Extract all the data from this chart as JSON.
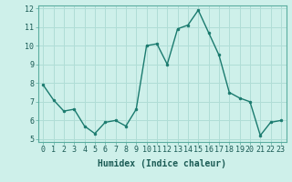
{
  "x": [
    0,
    1,
    2,
    3,
    4,
    5,
    6,
    7,
    8,
    9,
    10,
    11,
    12,
    13,
    14,
    15,
    16,
    17,
    18,
    19,
    20,
    21,
    22,
    23
  ],
  "y": [
    7.9,
    7.1,
    6.5,
    6.6,
    5.7,
    5.3,
    5.9,
    6.0,
    5.7,
    6.6,
    10.0,
    10.1,
    9.0,
    10.9,
    11.1,
    11.9,
    10.7,
    9.5,
    7.5,
    7.2,
    7.0,
    5.2,
    5.9,
    6.0
  ],
  "line_color": "#1a7a6e",
  "marker_color": "#1a7a6e",
  "bg_color": "#cef0ea",
  "grid_color": "#b0ddd6",
  "xlabel": "Humidex (Indice chaleur)",
  "ylim_min": 5,
  "ylim_max": 12,
  "xlim_min": -0.5,
  "xlim_max": 23.5,
  "yticks": [
    5,
    6,
    7,
    8,
    9,
    10,
    11,
    12
  ],
  "xticks": [
    0,
    1,
    2,
    3,
    4,
    5,
    6,
    7,
    8,
    9,
    10,
    11,
    12,
    13,
    14,
    15,
    16,
    17,
    18,
    19,
    20,
    21,
    22,
    23
  ],
  "xtick_labels": [
    "0",
    "1",
    "2",
    "3",
    "4",
    "5",
    "6",
    "7",
    "8",
    "9",
    "10",
    "11",
    "12",
    "13",
    "14",
    "15",
    "16",
    "17",
    "18",
    "19",
    "20",
    "21",
    "22",
    "23"
  ],
  "xlabel_fontsize": 7,
  "tick_fontsize": 6,
  "line_width": 1.0,
  "marker_size": 2.0
}
